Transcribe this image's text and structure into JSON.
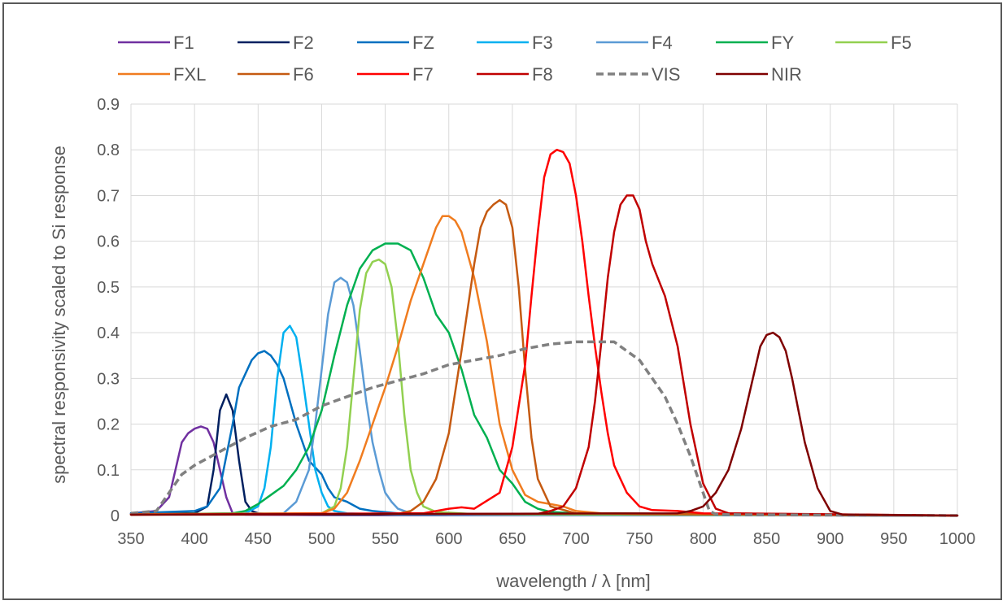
{
  "chart_data": {
    "type": "line",
    "xlabel": "wavelength / λ [nm]",
    "ylabel": "spectral responsivity scaled to Si response",
    "xlim": [
      350,
      1000
    ],
    "ylim": [
      0,
      0.9
    ],
    "x_ticks": [
      "350",
      "400",
      "450",
      "500",
      "550",
      "600",
      "650",
      "700",
      "750",
      "800",
      "850",
      "900",
      "950",
      "1000"
    ],
    "y_ticks": [
      "0",
      "0.1",
      "0.2",
      "0.3",
      "0.4",
      "0.5",
      "0.6",
      "0.7",
      "0.8",
      "0.9"
    ],
    "grid": true,
    "legend_position": "top",
    "series": [
      {
        "name": "F1",
        "color": "#7030a0",
        "dashed": false,
        "x": [
          350,
          370,
          380,
          385,
          390,
          395,
          400,
          405,
          410,
          415,
          420,
          425,
          430,
          440,
          500,
          1000
        ],
        "y": [
          0.005,
          0.01,
          0.04,
          0.1,
          0.16,
          0.18,
          0.19,
          0.195,
          0.19,
          0.16,
          0.1,
          0.04,
          0.005,
          0.002,
          0.001,
          0.0
        ]
      },
      {
        "name": "F2",
        "color": "#002060",
        "dashed": false,
        "x": [
          350,
          400,
          410,
          415,
          420,
          425,
          430,
          435,
          440,
          445,
          450,
          460,
          500,
          1000
        ],
        "y": [
          0.005,
          0.005,
          0.02,
          0.1,
          0.23,
          0.265,
          0.23,
          0.12,
          0.03,
          0.01,
          0.005,
          0.003,
          0.002,
          0.0
        ]
      },
      {
        "name": "FZ",
        "color": "#0070c0",
        "dashed": false,
        "x": [
          350,
          400,
          410,
          420,
          430,
          435,
          440,
          445,
          450,
          455,
          460,
          465,
          470,
          480,
          490,
          500,
          505,
          510,
          515,
          520,
          530,
          540,
          560,
          600,
          1000
        ],
        "y": [
          0.005,
          0.01,
          0.02,
          0.06,
          0.2,
          0.28,
          0.31,
          0.34,
          0.355,
          0.36,
          0.35,
          0.33,
          0.3,
          0.2,
          0.12,
          0.09,
          0.06,
          0.04,
          0.035,
          0.03,
          0.015,
          0.01,
          0.005,
          0.002,
          0.0
        ]
      },
      {
        "name": "F3",
        "color": "#00b0f0",
        "dashed": false,
        "x": [
          350,
          440,
          450,
          455,
          460,
          465,
          470,
          475,
          480,
          485,
          490,
          495,
          500,
          505,
          510,
          520,
          560,
          1000
        ],
        "y": [
          0.002,
          0.005,
          0.02,
          0.06,
          0.15,
          0.3,
          0.4,
          0.415,
          0.39,
          0.3,
          0.2,
          0.1,
          0.05,
          0.02,
          0.01,
          0.005,
          0.002,
          0.0
        ]
      },
      {
        "name": "F4",
        "color": "#5b9bd5",
        "dashed": false,
        "x": [
          350,
          470,
          480,
          490,
          495,
          500,
          505,
          510,
          515,
          520,
          525,
          530,
          535,
          540,
          545,
          550,
          555,
          560,
          570,
          600,
          1000
        ],
        "y": [
          0.002,
          0.005,
          0.03,
          0.1,
          0.2,
          0.32,
          0.44,
          0.51,
          0.52,
          0.51,
          0.46,
          0.36,
          0.25,
          0.16,
          0.1,
          0.05,
          0.03,
          0.015,
          0.005,
          0.002,
          0.0
        ]
      },
      {
        "name": "FY",
        "color": "#00b050",
        "dashed": false,
        "x": [
          350,
          430,
          440,
          450,
          460,
          470,
          480,
          490,
          500,
          510,
          520,
          530,
          540,
          550,
          560,
          570,
          580,
          590,
          600,
          610,
          620,
          630,
          640,
          650,
          660,
          670,
          680,
          700,
          1000
        ],
        "y": [
          0.002,
          0.005,
          0.01,
          0.025,
          0.045,
          0.065,
          0.1,
          0.15,
          0.23,
          0.35,
          0.46,
          0.54,
          0.58,
          0.595,
          0.595,
          0.58,
          0.52,
          0.44,
          0.4,
          0.32,
          0.22,
          0.17,
          0.1,
          0.07,
          0.03,
          0.015,
          0.008,
          0.005,
          0.0
        ]
      },
      {
        "name": "F5",
        "color": "#92d050",
        "dashed": false,
        "x": [
          350,
          500,
          510,
          515,
          520,
          525,
          530,
          535,
          540,
          545,
          550,
          555,
          560,
          565,
          570,
          575,
          580,
          590,
          620,
          1000
        ],
        "y": [
          0.002,
          0.005,
          0.02,
          0.06,
          0.15,
          0.3,
          0.45,
          0.53,
          0.555,
          0.56,
          0.55,
          0.5,
          0.38,
          0.22,
          0.1,
          0.05,
          0.02,
          0.008,
          0.003,
          0.0
        ]
      },
      {
        "name": "FXL",
        "color": "#f07c1f",
        "dashed": false,
        "x": [
          350,
          500,
          510,
          520,
          530,
          540,
          550,
          560,
          570,
          580,
          590,
          595,
          600,
          605,
          610,
          620,
          630,
          640,
          650,
          660,
          670,
          680,
          690,
          700,
          720,
          750,
          1000
        ],
        "y": [
          0.003,
          0.005,
          0.015,
          0.05,
          0.12,
          0.2,
          0.28,
          0.37,
          0.47,
          0.55,
          0.63,
          0.655,
          0.655,
          0.645,
          0.62,
          0.52,
          0.38,
          0.2,
          0.1,
          0.045,
          0.03,
          0.025,
          0.02,
          0.01,
          0.005,
          0.003,
          0.0
        ]
      },
      {
        "name": "F6",
        "color": "#c55a11",
        "dashed": false,
        "x": [
          350,
          560,
          570,
          580,
          590,
          600,
          610,
          620,
          625,
          630,
          635,
          640,
          645,
          650,
          655,
          660,
          665,
          670,
          680,
          700,
          1000
        ],
        "y": [
          0.002,
          0.004,
          0.01,
          0.03,
          0.08,
          0.18,
          0.36,
          0.55,
          0.63,
          0.665,
          0.68,
          0.69,
          0.68,
          0.63,
          0.5,
          0.32,
          0.17,
          0.08,
          0.02,
          0.005,
          0.0
        ]
      },
      {
        "name": "F7",
        "color": "#ff0000",
        "dashed": false,
        "x": [
          350,
          580,
          600,
          610,
          620,
          640,
          650,
          660,
          665,
          670,
          675,
          680,
          685,
          690,
          695,
          700,
          705,
          710,
          715,
          720,
          725,
          730,
          740,
          750,
          760,
          780,
          800,
          1000
        ],
        "y": [
          0.002,
          0.005,
          0.015,
          0.018,
          0.015,
          0.05,
          0.15,
          0.33,
          0.48,
          0.62,
          0.74,
          0.79,
          0.8,
          0.795,
          0.77,
          0.7,
          0.6,
          0.48,
          0.37,
          0.27,
          0.18,
          0.11,
          0.05,
          0.02,
          0.012,
          0.01,
          0.005,
          0.0
        ]
      },
      {
        "name": "F8",
        "color": "#c00000",
        "dashed": false,
        "x": [
          350,
          670,
          680,
          690,
          700,
          710,
          715,
          720,
          725,
          730,
          735,
          740,
          745,
          750,
          755,
          760,
          770,
          780,
          790,
          800,
          810,
          820,
          1000
        ],
        "y": [
          0.002,
          0.004,
          0.01,
          0.02,
          0.06,
          0.15,
          0.25,
          0.38,
          0.52,
          0.62,
          0.68,
          0.7,
          0.7,
          0.67,
          0.6,
          0.55,
          0.48,
          0.37,
          0.2,
          0.07,
          0.015,
          0.005,
          0.0
        ]
      },
      {
        "name": "VIS",
        "color": "#808080",
        "dashed": true,
        "x": [
          350,
          370,
          380,
          390,
          400,
          420,
          440,
          460,
          480,
          500,
          520,
          540,
          560,
          580,
          600,
          620,
          640,
          660,
          680,
          700,
          720,
          730,
          740,
          750,
          760,
          770,
          780,
          790,
          800,
          805,
          810,
          820,
          900,
          1000
        ],
        "y": [
          0.005,
          0.01,
          0.05,
          0.09,
          0.11,
          0.14,
          0.17,
          0.195,
          0.21,
          0.24,
          0.26,
          0.28,
          0.295,
          0.31,
          0.33,
          0.34,
          0.35,
          0.365,
          0.375,
          0.38,
          0.38,
          0.38,
          0.36,
          0.34,
          0.3,
          0.26,
          0.2,
          0.13,
          0.05,
          0.01,
          0.003,
          0.002,
          0.001,
          0.0
        ]
      },
      {
        "name": "NIR",
        "color": "#7f0000",
        "dashed": false,
        "x": [
          350,
          780,
          790,
          800,
          810,
          820,
          830,
          840,
          845,
          850,
          855,
          860,
          865,
          870,
          875,
          880,
          890,
          900,
          910,
          1000
        ],
        "y": [
          0.002,
          0.005,
          0.01,
          0.02,
          0.05,
          0.1,
          0.19,
          0.31,
          0.37,
          0.395,
          0.4,
          0.39,
          0.36,
          0.3,
          0.23,
          0.16,
          0.06,
          0.01,
          0.002,
          0.0
        ]
      }
    ]
  }
}
